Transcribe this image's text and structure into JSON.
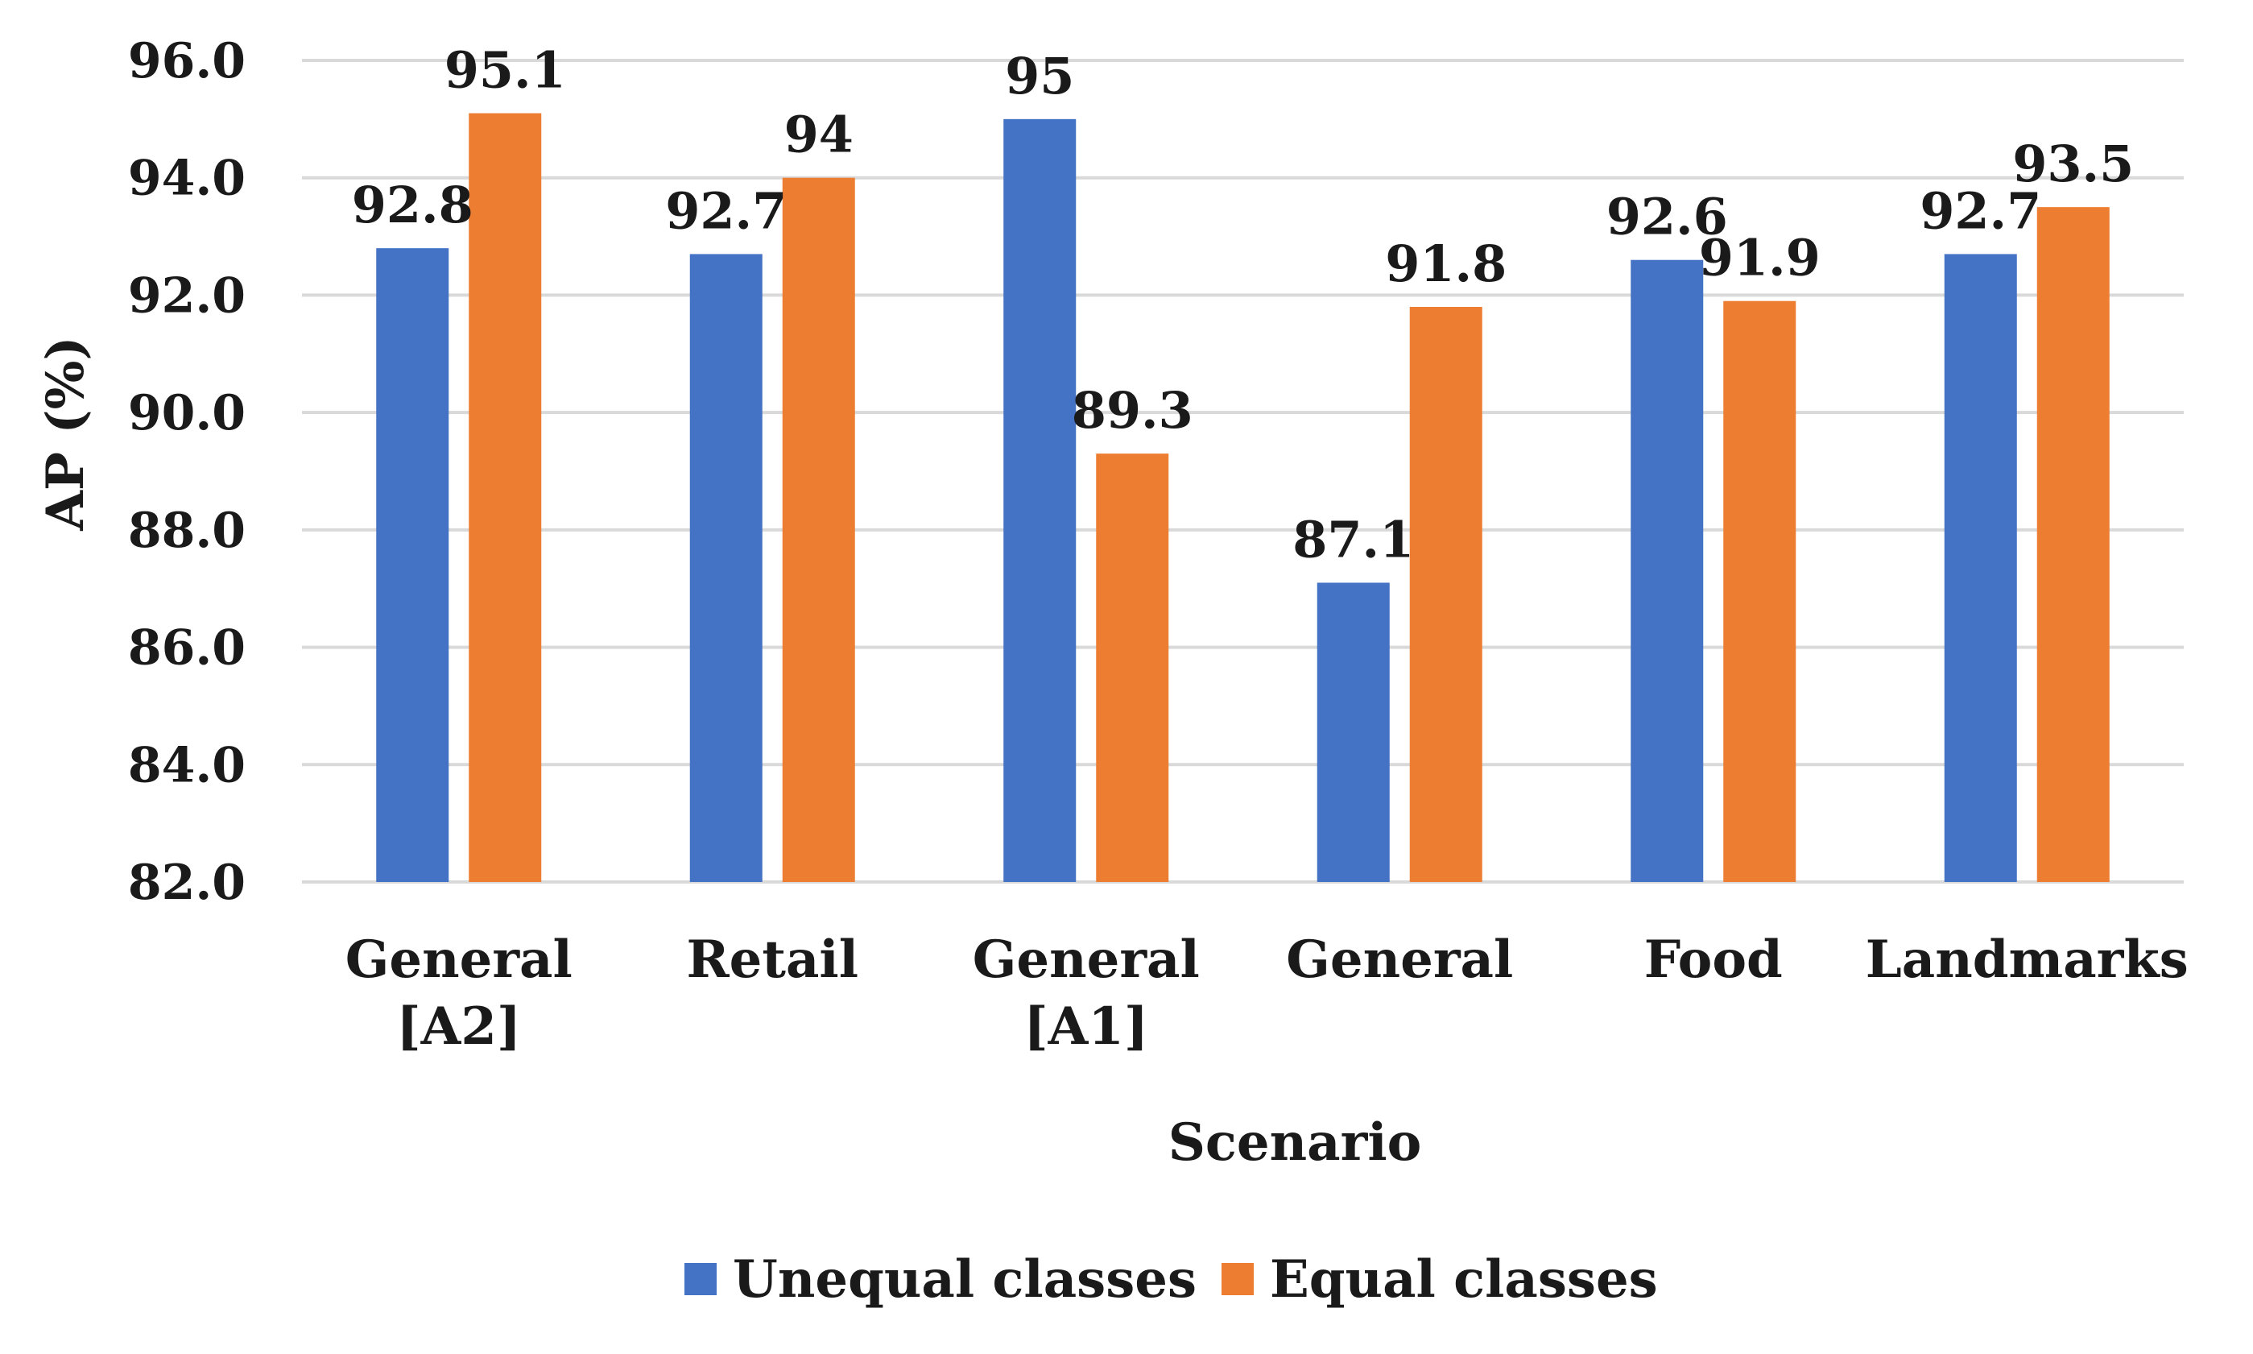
{
  "chart_data": {
    "type": "bar",
    "title": "",
    "xlabel": "Scenario",
    "ylabel": "AP (%)",
    "ylim": [
      82,
      96
    ],
    "yticks": [
      "82.0",
      "84.0",
      "86.0",
      "88.0",
      "90.0",
      "92.0",
      "94.0",
      "96.0"
    ],
    "grid": true,
    "legend_position": "bottom",
    "categories": [
      [
        "General",
        "[A2]"
      ],
      [
        "Retail"
      ],
      [
        "General",
        "[A1]"
      ],
      [
        "General"
      ],
      [
        "Food"
      ],
      [
        "Landmarks"
      ]
    ],
    "series": [
      {
        "name": "Unequal classes",
        "color": "#4472C4",
        "values": [
          92.8,
          92.7,
          95,
          87.1,
          92.6,
          92.7
        ],
        "labels": [
          "92.8",
          "92.7",
          "95",
          "87.1",
          "92.6",
          "92.7"
        ]
      },
      {
        "name": "Equal classes",
        "color": "#ED7D31",
        "values": [
          95.1,
          94,
          89.3,
          91.8,
          91.9,
          93.5
        ],
        "labels": [
          "95.1",
          "94",
          "89.3",
          "91.8",
          "91.9",
          "93.5"
        ]
      }
    ]
  }
}
